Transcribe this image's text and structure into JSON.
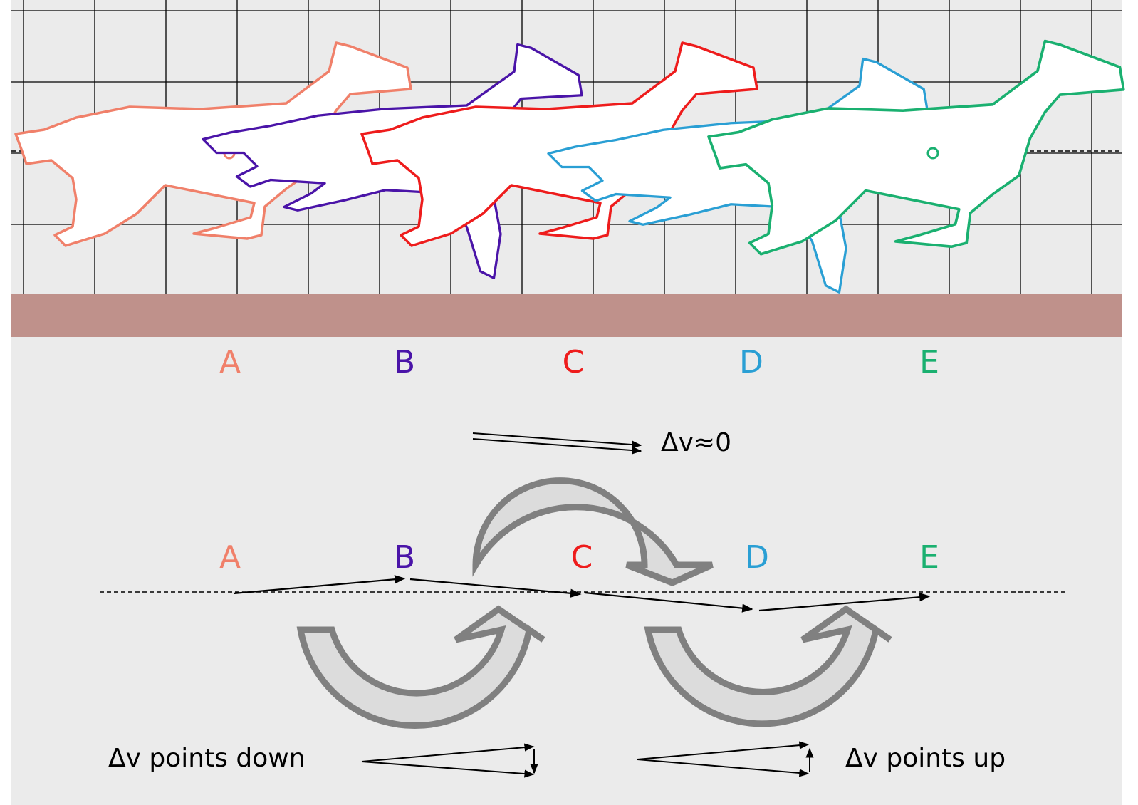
{
  "frames": [
    {
      "label": "A",
      "color": "#f0806a"
    },
    {
      "label": "B",
      "color": "#4a14a8"
    },
    {
      "label": "C",
      "color": "#ee1c1c"
    },
    {
      "label": "D",
      "color": "#2a9fd4"
    },
    {
      "label": "E",
      "color": "#1ab070"
    }
  ],
  "colors": {
    "panel_background": "#ebebeb",
    "ground": "#bf918b",
    "grid": "#000000",
    "curved_arrow_fill": "#dcdcdc",
    "curved_arrow_stroke": "#808080"
  },
  "annotations": {
    "delta_v_zero": "Δv≈0",
    "delta_v_down": "Δv points down",
    "delta_v_up": "Δv points up"
  }
}
